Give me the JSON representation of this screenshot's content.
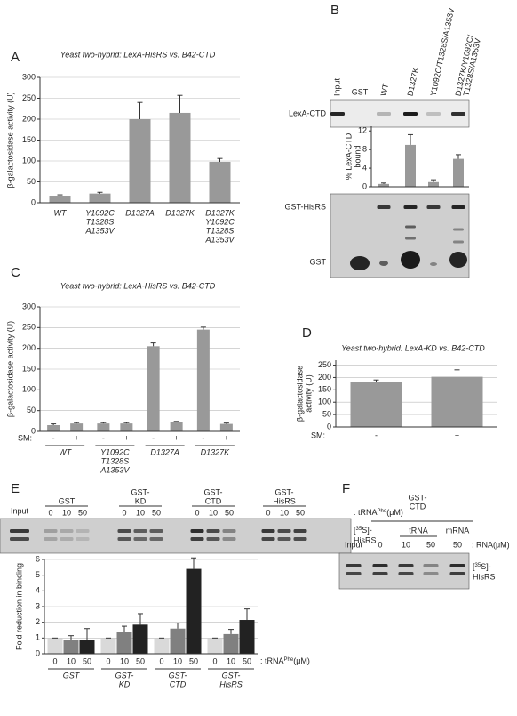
{
  "panel_labels": [
    "A",
    "B",
    "C",
    "D",
    "E",
    "F"
  ],
  "gel_b": {
    "lanes": [
      "Input",
      "GST"
    ],
    "rows": [
      "LexA-CTD",
      "GST-HisRS",
      "GST"
    ]
  },
  "gel_e": {
    "input": "Input",
    "tag": [
      "[",
      "35",
      "S]-",
      "HisRS"
    ]
  },
  "gel_f": {
    "group": [
      "GST-",
      "CTD"
    ],
    "subgroups": [
      "tRNA",
      "mRNA"
    ],
    "lanes": [
      "Input",
      "0",
      "10",
      "50",
      "50"
    ],
    "unit": ": RNA(μM)"
  },
  "chart_data": [
    {
      "type": "bar",
      "title": "Yeast two-hybrid: LexA-HisRS vs. B42-CTD",
      "ylabel": "β-galactosidase activity (U)",
      "categories": [
        [
          "WT"
        ],
        [
          "Y1092C",
          "T1328S",
          "A1353V"
        ],
        [
          "D1327A"
        ],
        [
          "D1327K"
        ],
        [
          "D1327K",
          "Y1092C",
          "T1328S",
          "A1353V"
        ]
      ],
      "values": [
        17,
        22,
        200,
        215,
        98
      ],
      "errors": [
        2,
        3,
        40,
        42,
        8
      ],
      "color": "#999999",
      "ylim": [
        0,
        300
      ],
      "yticks": [
        0,
        50,
        100,
        150,
        200,
        250,
        300
      ],
      "grid": true
    },
    {
      "type": "bar",
      "ylabel": [
        "% LexA-CTD",
        "bound"
      ],
      "categories": [
        "WT",
        "D1327K",
        "Y1092C/T1328S/A1353V",
        [
          "D1327K/Y1092C/",
          "T1328S/A1353V"
        ]
      ],
      "values": [
        0.6,
        9,
        1,
        6
      ],
      "errors": [
        0.2,
        2.2,
        0.5,
        0.9
      ],
      "color": "#999999",
      "ylim": [
        0,
        13
      ],
      "yticks": [
        0,
        4,
        8,
        12
      ],
      "grid": false
    },
    {
      "type": "bar",
      "title": "Yeast two-hybrid: LexA-HisRS vs. B42-CTD",
      "ylabel": "β-galactosidase activity (U)",
      "x_prefix": "SM:",
      "categories": [
        [
          "WT"
        ],
        [
          "Y1092C",
          "T1328S",
          "A1353V"
        ],
        [
          "D1327A"
        ],
        [
          "D1327K"
        ]
      ],
      "series": [
        {
          "name": "-",
          "color": "#999999",
          "values": [
            15,
            19,
            205,
            245
          ],
          "errors": [
            3,
            2,
            8,
            6
          ]
        },
        {
          "name": "+",
          "color": "#999999",
          "values": [
            19,
            19,
            22,
            18
          ],
          "errors": [
            2,
            2,
            2,
            2
          ]
        }
      ],
      "ylim": [
        0,
        300
      ],
      "yticks": [
        0,
        50,
        100,
        150,
        200,
        250,
        300
      ],
      "grid": true
    },
    {
      "type": "bar",
      "title": "Yeast two-hybrid: LexA-KD vs. B42-CTD",
      "ylabel": [
        "β-galactosidase",
        "activity (U)"
      ],
      "x_prefix": "SM:",
      "categories": [
        "-",
        "+"
      ],
      "values": [
        180,
        203
      ],
      "errors": [
        10,
        28
      ],
      "color": "#999999",
      "ylim": [
        0,
        270
      ],
      "yticks": [
        0,
        50,
        100,
        150,
        200,
        250
      ],
      "grid": true
    },
    {
      "type": "bar",
      "ylabel": "Fold reduction in binding",
      "x_suffix": [
        ": tRNA",
        "Phe",
        "(μM)"
      ],
      "categories": [
        [
          "GST"
        ],
        [
          "GST-",
          "KD"
        ],
        [
          "GST-",
          "CTD"
        ],
        [
          "GST-",
          "HisRS"
        ]
      ],
      "series": [
        {
          "name": "0",
          "color": "#d9d9d9",
          "values": [
            1,
            1,
            1,
            1
          ],
          "errors": [
            0,
            0,
            0,
            0
          ]
        },
        {
          "name": "10",
          "color": "#808080",
          "values": [
            0.85,
            1.4,
            1.6,
            1.25
          ],
          "errors": [
            0.3,
            0.35,
            0.35,
            0.3
          ]
        },
        {
          "name": "50",
          "color": "#222222",
          "values": [
            0.9,
            1.85,
            5.4,
            2.15
          ],
          "errors": [
            0.7,
            0.7,
            0.7,
            0.7
          ]
        }
      ],
      "ylim": [
        0,
        6
      ],
      "yticks": [
        0,
        1,
        2,
        3,
        4,
        5,
        6
      ],
      "grid": true
    }
  ]
}
